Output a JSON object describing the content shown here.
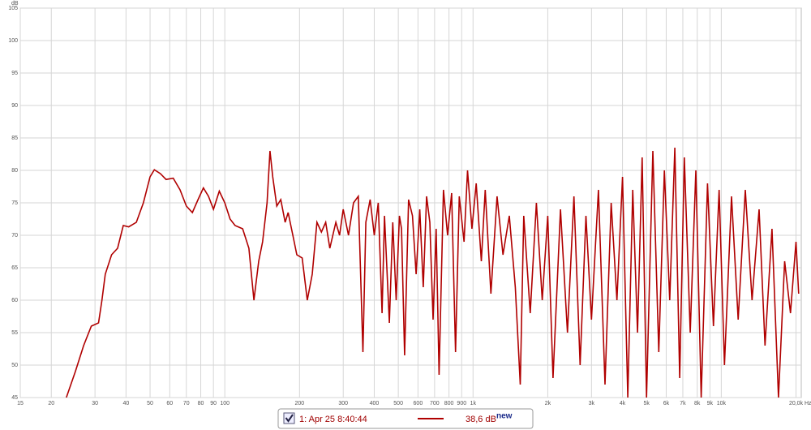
{
  "chart_data": {
    "type": "line",
    "y_label": "dB",
    "x_label": "Hz",
    "xscale": "log",
    "grid": true,
    "xlim": [
      15,
      21000
    ],
    "ylim": [
      45,
      105
    ],
    "xticks": [
      15,
      20,
      30,
      40,
      50,
      60,
      70,
      80,
      90,
      100,
      200,
      300,
      400,
      500,
      600,
      700,
      800,
      900,
      {
        "value": 1000,
        "label": "1k"
      },
      {
        "value": 2000,
        "label": "2k"
      },
      {
        "value": 3000,
        "label": "3k"
      },
      {
        "value": 4000,
        "label": "4k"
      },
      {
        "value": 5000,
        "label": "5k"
      },
      {
        "value": 6000,
        "label": "6k"
      },
      {
        "value": 7000,
        "label": "7k"
      },
      {
        "value": 8000,
        "label": "8k"
      },
      {
        "value": 9000,
        "label": "9k"
      },
      {
        "value": 10000,
        "label": "10k"
      },
      {
        "value": 20000,
        "label": "20,0k"
      }
    ],
    "yticks": [
      45,
      50,
      55,
      60,
      65,
      70,
      75,
      80,
      85,
      90,
      95,
      100,
      105
    ],
    "x": [
      23,
      25,
      27,
      29,
      31,
      32,
      33,
      35,
      37,
      39,
      41,
      44,
      47,
      50,
      52,
      55,
      58,
      62,
      66,
      70,
      74,
      78,
      82,
      86,
      90,
      95,
      100,
      105,
      110,
      118,
      125,
      131,
      137,
      142,
      148,
      152,
      156,
      162,
      168,
      175,
      180,
      188,
      195,
      205,
      215,
      225,
      235,
      245,
      255,
      265,
      280,
      290,
      300,
      315,
      330,
      345,
      360,
      370,
      385,
      400,
      415,
      430,
      440,
      460,
      475,
      490,
      505,
      515,
      530,
      550,
      570,
      590,
      610,
      630,
      650,
      670,
      690,
      710,
      730,
      760,
      790,
      820,
      850,
      880,
      920,
      950,
      990,
      1030,
      1080,
      1120,
      1180,
      1250,
      1320,
      1400,
      1480,
      1550,
      1600,
      1700,
      1800,
      1900,
      2000,
      2100,
      2250,
      2400,
      2550,
      2700,
      2850,
      3000,
      3200,
      3400,
      3600,
      3800,
      4000,
      4200,
      4400,
      4600,
      4800,
      5000,
      5300,
      5600,
      5900,
      6200,
      6500,
      6800,
      7100,
      7500,
      7900,
      8300,
      8800,
      9300,
      9800,
      10300,
      11000,
      11700,
      12500,
      13300,
      14200,
      15000,
      16000,
      17000,
      18000,
      19000,
      20000,
      20500
    ],
    "series": [
      {
        "name": "1: Apr 25 8:40:44",
        "color": "#b00000",
        "values": [
          45,
          49,
          53,
          56,
          56.5,
          60,
          64,
          67,
          68,
          71.5,
          71.3,
          72,
          75,
          79,
          80.1,
          79.5,
          78.6,
          78.8,
          77,
          74.5,
          73.5,
          75.5,
          77.3,
          76,
          74,
          76.8,
          75,
          72.5,
          71.5,
          71,
          68,
          60,
          66,
          69,
          75,
          83,
          79,
          74.5,
          75.5,
          72,
          73.5,
          70,
          67,
          66.5,
          60,
          64,
          72,
          70.5,
          72,
          68,
          72,
          70,
          74,
          70,
          75,
          76,
          52,
          72,
          75.5,
          70,
          75,
          58,
          73,
          56.5,
          72,
          60,
          73,
          71,
          51.5,
          75.5,
          73,
          64,
          74,
          62,
          76,
          72,
          57,
          71,
          48.5,
          77,
          70,
          76.5,
          52,
          76,
          69,
          80,
          71,
          78,
          66,
          77,
          61,
          76,
          67,
          73,
          62,
          47,
          73,
          58,
          75,
          60,
          73,
          48,
          74,
          55,
          76,
          50,
          73,
          57,
          77,
          47,
          75,
          60,
          79,
          45,
          77,
          55,
          82,
          45,
          83,
          52,
          80,
          60,
          83.5,
          48,
          82,
          55,
          80,
          45,
          78,
          56,
          77,
          50,
          76,
          57,
          77,
          60,
          74,
          53,
          71,
          45,
          66,
          58,
          69,
          61
        ]
      }
    ],
    "legend": {
      "value_text": "38,6 dB",
      "badge": "new"
    }
  }
}
